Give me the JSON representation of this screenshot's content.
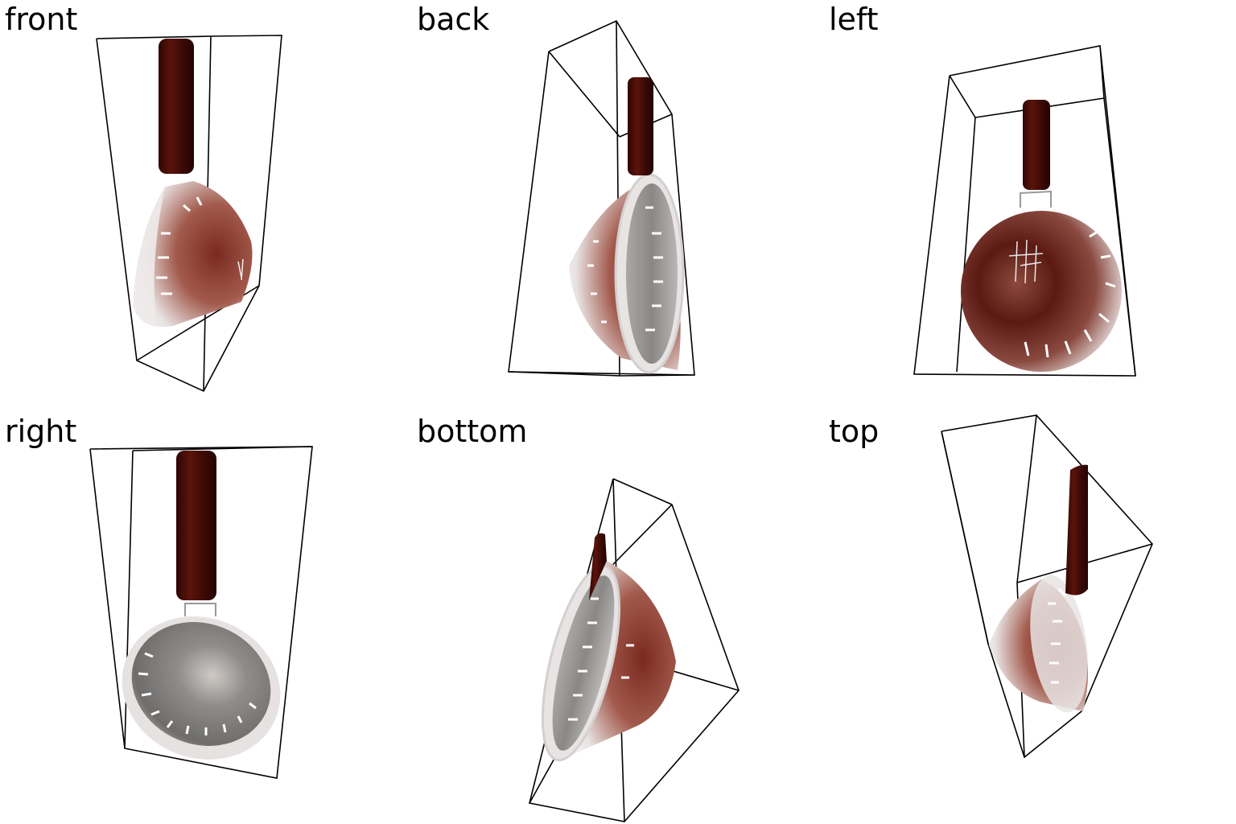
{
  "views": [
    {
      "label": "front"
    },
    {
      "label": "back"
    },
    {
      "label": "left"
    },
    {
      "label": "right"
    },
    {
      "label": "bottom"
    },
    {
      "label": "top"
    }
  ],
  "colors": {
    "handle": "#4a0d06",
    "bowl_outer": "#8c3f33",
    "bowl_rim": "#e6e2e2",
    "bowl_inner": "#8d8c8a",
    "frame": "#000000",
    "background": "#ffffff"
  },
  "object": "colander-with-handle"
}
